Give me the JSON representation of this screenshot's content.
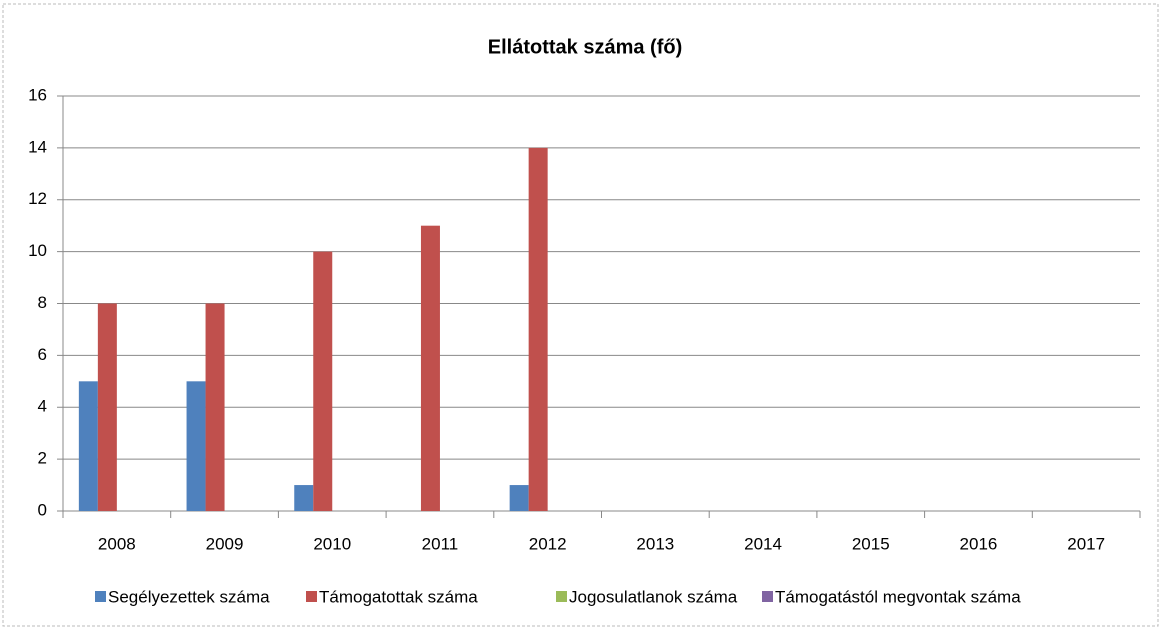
{
  "chart_data": {
    "type": "bar",
    "title": "Ellátottak száma (fő)",
    "categories": [
      "2008",
      "2009",
      "2010",
      "2011",
      "2012",
      "2013",
      "2014",
      "2015",
      "2016",
      "2017"
    ],
    "series": [
      {
        "name": "Segélyezettek száma",
        "color": "#4f81bd",
        "values": [
          5,
          5,
          1,
          0,
          1,
          null,
          null,
          null,
          null,
          null
        ]
      },
      {
        "name": "Támogatottak száma",
        "color": "#c0504d",
        "values": [
          8,
          8,
          10,
          11,
          14,
          null,
          null,
          null,
          null,
          null
        ]
      },
      {
        "name": "Jogosulatlanok száma",
        "color": "#9bbb59",
        "values": [
          0,
          0,
          0,
          0,
          0,
          null,
          null,
          null,
          null,
          null
        ]
      },
      {
        "name": "Támogatástól megvontak száma",
        "color": "#8064a2",
        "values": [
          0,
          0,
          0,
          0,
          0,
          null,
          null,
          null,
          null,
          null
        ]
      }
    ],
    "ylim": [
      0,
      16
    ],
    "yticks": [
      0,
      2,
      4,
      6,
      8,
      10,
      12,
      14,
      16
    ],
    "grid": true,
    "legend": "bottom"
  }
}
